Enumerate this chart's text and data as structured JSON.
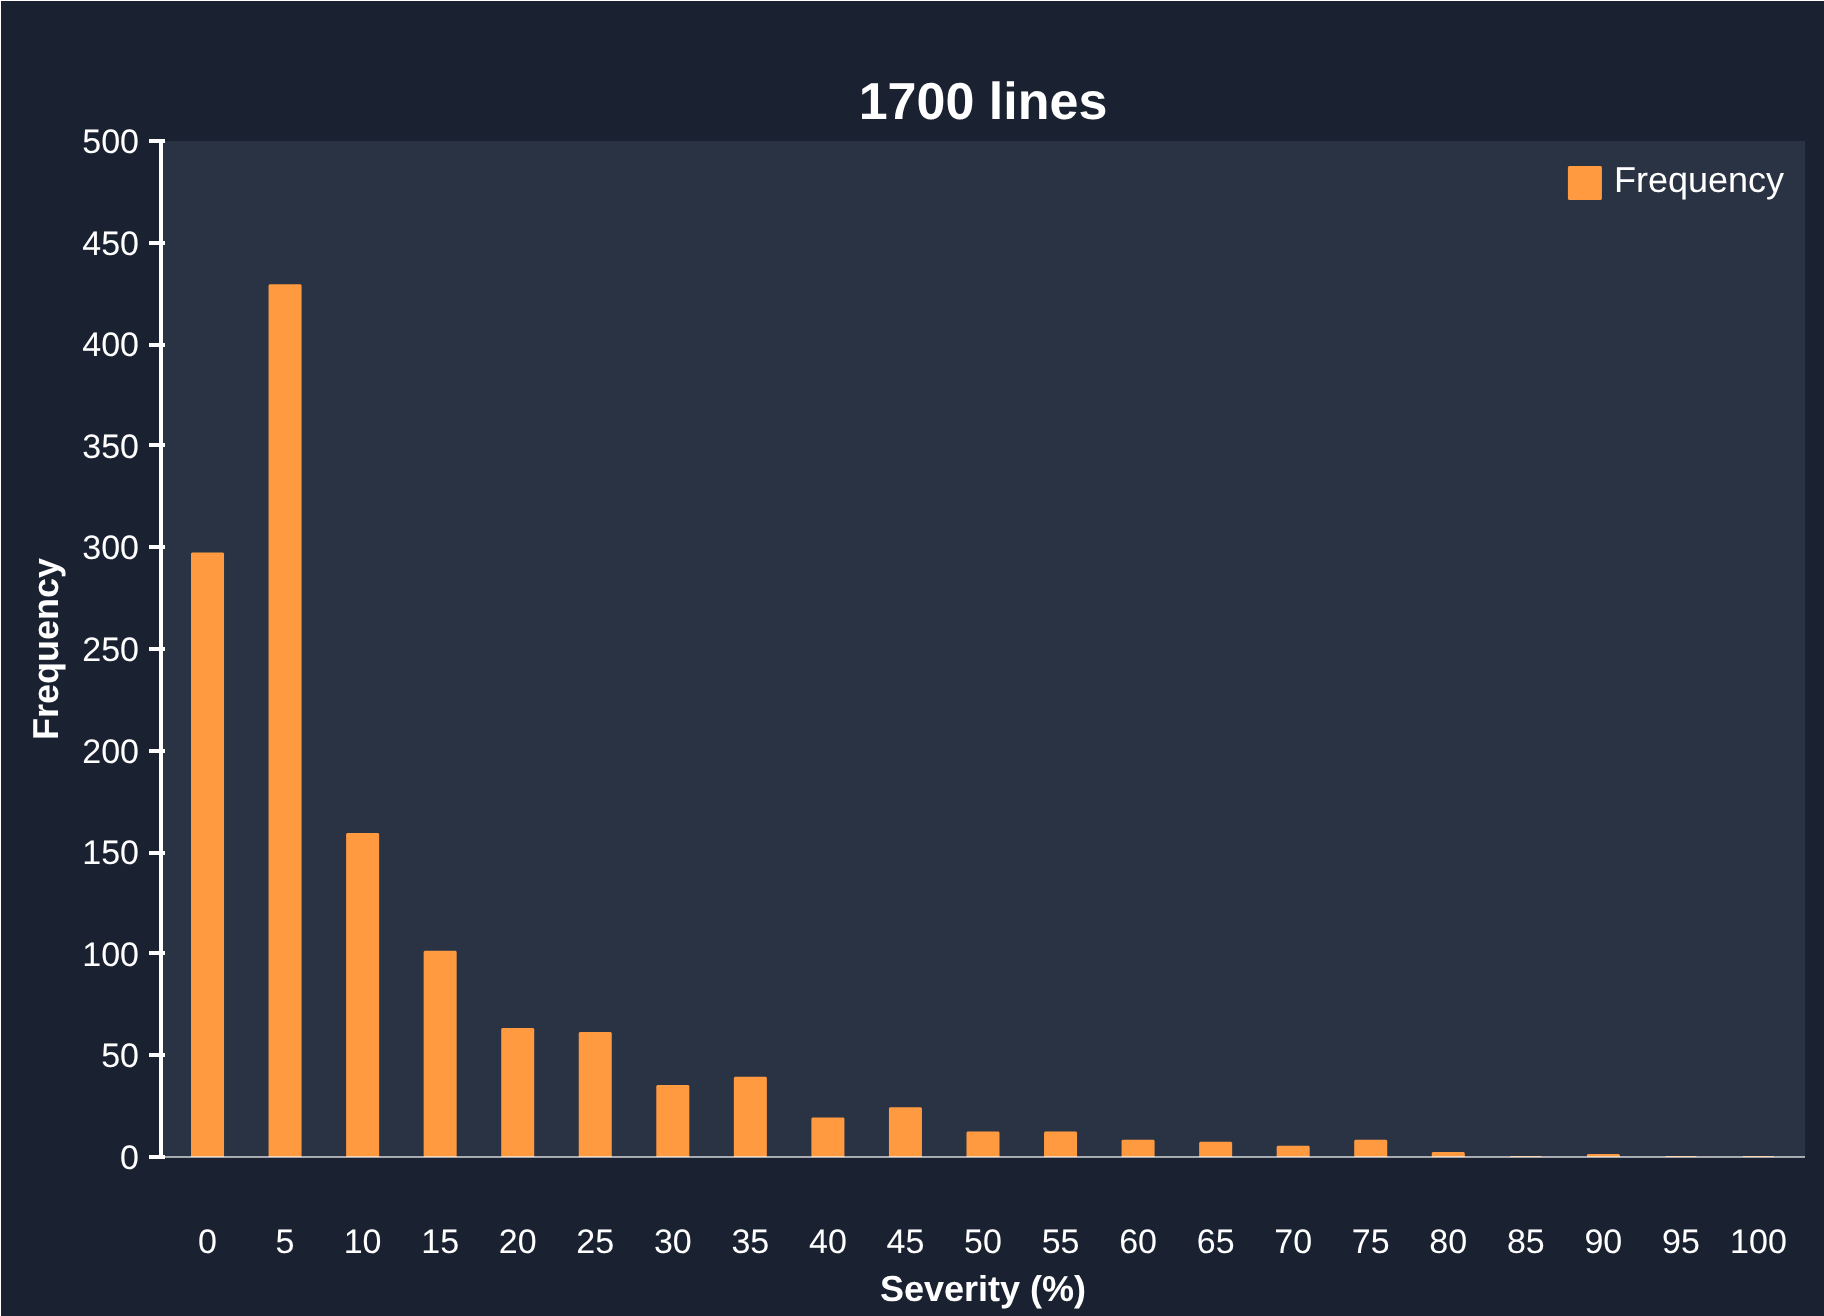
{
  "chart_data": {
    "type": "bar",
    "title": "1700 lines",
    "xlabel": "Severity (%)",
    "ylabel": "Frequency",
    "categories": [
      "0",
      "5",
      "10",
      "15",
      "20",
      "25",
      "30",
      "35",
      "40",
      "45",
      "50",
      "55",
      "60",
      "65",
      "70",
      "75",
      "80",
      "85",
      "90",
      "95",
      "100"
    ],
    "series": [
      {
        "name": "Frequency",
        "color": "#ff9a40",
        "values": [
          297,
          429,
          159,
          101,
          63,
          61,
          35,
          39,
          19,
          24,
          12,
          12,
          8,
          7,
          5,
          8,
          2,
          0,
          1,
          0,
          0
        ]
      }
    ],
    "ylim": [
      0,
      500
    ],
    "yticks": [
      0,
      50,
      100,
      150,
      200,
      250,
      300,
      350,
      400,
      450,
      500
    ],
    "grid": false,
    "legend": "top right"
  }
}
